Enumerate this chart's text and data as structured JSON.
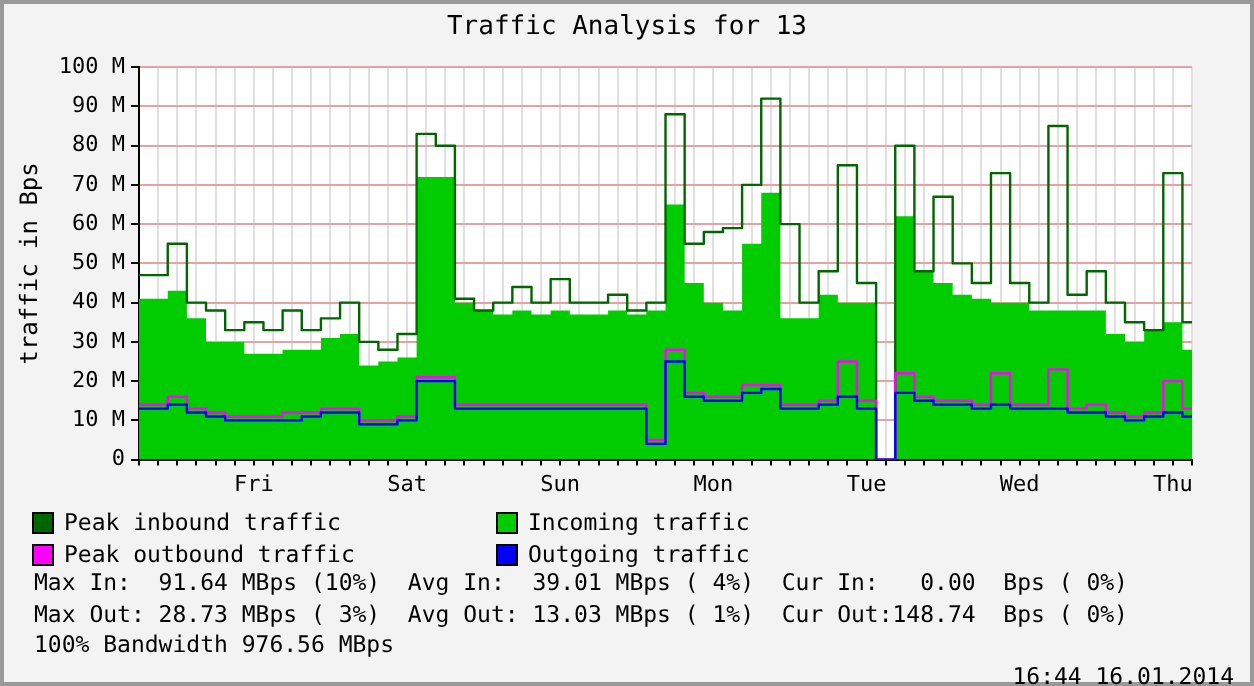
{
  "chart_data": {
    "type": "step",
    "title": "Traffic Analysis for 13",
    "ylabel": "traffic in Bps",
    "categories": [
      null,
      null,
      null,
      null,
      null,
      null,
      "Fri",
      null,
      null,
      null,
      null,
      null,
      null,
      null,
      "Sat",
      null,
      null,
      null,
      null,
      null,
      null,
      null,
      "Sun",
      null,
      null,
      null,
      null,
      null,
      null,
      null,
      "Mon",
      null,
      null,
      null,
      null,
      null,
      null,
      null,
      "Tue",
      null,
      null,
      null,
      null,
      null,
      null,
      null,
      "Wed",
      null,
      null,
      null,
      null,
      null,
      null,
      null,
      "Thu",
      null
    ],
    "series": [
      {
        "name": "Peak inbound traffic",
        "color": "#006600",
        "values": [
          47,
          47,
          55,
          40,
          38,
          33,
          35,
          33,
          38,
          33,
          36,
          40,
          30,
          28,
          32,
          83,
          80,
          41,
          38,
          40,
          44,
          40,
          46,
          40,
          40,
          42,
          38,
          40,
          88,
          55,
          58,
          59,
          70,
          92,
          60,
          40,
          48,
          75,
          45,
          0,
          80,
          48,
          67,
          50,
          45,
          73,
          45,
          40,
          85,
          42,
          48,
          40,
          35,
          33,
          73,
          35
        ]
      },
      {
        "name": "Incoming traffic",
        "color": "#00cc00",
        "type": "area",
        "values": [
          41,
          41,
          43,
          36,
          30,
          30,
          27,
          27,
          28,
          28,
          31,
          32,
          24,
          25,
          26,
          72,
          72,
          40,
          38,
          37,
          38,
          37,
          38,
          37,
          37,
          38,
          37,
          38,
          65,
          45,
          40,
          38,
          55,
          68,
          36,
          36,
          42,
          40,
          40,
          0,
          62,
          48,
          45,
          42,
          41,
          40,
          40,
          38,
          38,
          38,
          38,
          32,
          30,
          33,
          35,
          28
        ]
      },
      {
        "name": "Peak outbound traffic",
        "color": "#ff00ff",
        "values": [
          14,
          14,
          16,
          13,
          12,
          11,
          11,
          11,
          12,
          12,
          13,
          13,
          10,
          10,
          11,
          21,
          21,
          14,
          14,
          14,
          14,
          14,
          14,
          14,
          14,
          14,
          14,
          5,
          28,
          17,
          16,
          16,
          19,
          19,
          14,
          14,
          15,
          25,
          15,
          0,
          22,
          16,
          15,
          15,
          14,
          22,
          14,
          14,
          23,
          13,
          14,
          12,
          11,
          12,
          20,
          13
        ]
      },
      {
        "name": "Outgoing traffic",
        "color": "#0000ff",
        "values": [
          13,
          13,
          14,
          12,
          11,
          10,
          10,
          10,
          10,
          11,
          12,
          12,
          9,
          9,
          10,
          20,
          20,
          13,
          13,
          13,
          13,
          13,
          13,
          13,
          13,
          13,
          13,
          4,
          25,
          16,
          15,
          15,
          17,
          18,
          13,
          13,
          14,
          16,
          13,
          0,
          17,
          15,
          14,
          14,
          13,
          14,
          13,
          13,
          13,
          12,
          12,
          11,
          10,
          11,
          12,
          11
        ]
      }
    ],
    "ylim": [
      0,
      100
    ],
    "yticks": [
      0,
      {
        "value": 10,
        "label": "10 M"
      },
      {
        "value": 20,
        "label": "20 M"
      },
      {
        "value": 30,
        "label": "30 M"
      },
      {
        "value": 40,
        "label": "40 M"
      },
      {
        "value": 50,
        "label": "50 M"
      },
      {
        "value": 60,
        "label": "60 M"
      },
      {
        "value": 70,
        "label": "70 M"
      },
      {
        "value": 80,
        "label": "80 M"
      },
      {
        "value": 90,
        "label": "90 M"
      },
      {
        "value": 100,
        "label": "100 M"
      }
    ],
    "grid": true,
    "legend": "bottom",
    "annotations": [
      "Max In:  91.64 MBps (10%)  Avg In:  39.01 MBps ( 4%)  Cur In:   0.00  Bps ( 0%)",
      "Max Out: 28.73 MBps ( 3%)  Avg Out: 13.03 MBps ( 1%)  Cur Out:148.74  Bps ( 0%)",
      "100% Bandwidth 976.56 MBps",
      "16:44 16.01.2014"
    ]
  }
}
